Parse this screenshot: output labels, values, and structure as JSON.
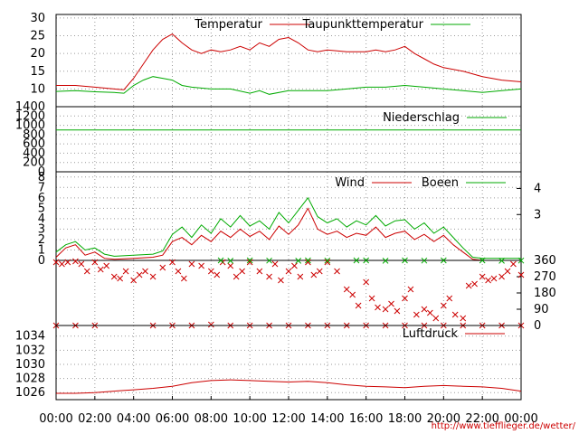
{
  "source_label": "http://www.tiefflieger.de/wetter/",
  "x_ticks": [
    "00:00",
    "02:00",
    "04:00",
    "06:00",
    "08:00",
    "10:00",
    "12:00",
    "14:00",
    "16:00",
    "18:00",
    "20:00",
    "22:00",
    "00:00"
  ],
  "colors": {
    "red": "#cc0000",
    "green": "#00aa00",
    "grid": "#9a9a9a"
  },
  "chart_data": [
    {
      "type": "line",
      "ylim": [
        5,
        31
      ],
      "y_ticks": [
        "30",
        "25",
        "20",
        "15",
        "10"
      ],
      "y_tick_values": [
        30,
        25,
        20,
        15,
        10
      ],
      "legend": "top",
      "series": [
        {
          "name": "Temperatur",
          "color": "#cc0000",
          "x": [
            0,
            1,
            2,
            3,
            3.5,
            4,
            4.5,
            5,
            5.5,
            6,
            6.5,
            7,
            7.5,
            8,
            8.5,
            9,
            9.5,
            10,
            10.5,
            11,
            11.5,
            12,
            12.5,
            13,
            13.5,
            14,
            15,
            16,
            16.5,
            17,
            17.5,
            18,
            18.5,
            19,
            19.5,
            20,
            21,
            22,
            23,
            24
          ],
          "y": [
            11,
            11,
            10.5,
            10,
            9.8,
            13,
            17,
            21,
            24,
            25.5,
            23,
            21,
            20,
            21,
            20.5,
            21,
            22,
            21,
            23,
            22,
            24,
            24.5,
            23,
            21,
            20.5,
            21,
            20.5,
            20.5,
            21,
            20.5,
            21,
            22,
            20,
            18.5,
            17,
            16,
            15,
            13.5,
            12.5,
            12
          ]
        },
        {
          "name": "Taupunkttemperatur",
          "color": "#00aa00",
          "x": [
            0,
            1,
            2,
            3,
            3.5,
            4,
            4.5,
            5,
            5.5,
            6,
            6.5,
            7,
            8,
            9,
            10,
            10.5,
            11,
            12,
            13,
            14,
            15,
            16,
            17,
            18,
            19,
            20,
            21,
            22,
            23,
            24
          ],
          "y": [
            9.3,
            9.5,
            9.2,
            9,
            8.8,
            11,
            12.5,
            13.5,
            13,
            12.5,
            11,
            10.5,
            10,
            10,
            8.8,
            9.5,
            8.5,
            9.5,
            9.5,
            9.5,
            10,
            10.5,
            10.5,
            11,
            10.5,
            10,
            9.5,
            9,
            9.5,
            10
          ]
        }
      ]
    },
    {
      "type": "line",
      "ylim": [
        0,
        1400
      ],
      "y_ticks": [
        "1400",
        "1200",
        "1000",
        "800",
        "600",
        "400",
        "200",
        "0"
      ],
      "y_tick_values": [
        1400,
        1200,
        1000,
        800,
        600,
        400,
        200,
        0
      ],
      "series": [
        {
          "name": "Niederschlag",
          "color": "#00aa00",
          "x": [
            0,
            24
          ],
          "y": [
            900,
            900
          ]
        }
      ]
    },
    {
      "type": "line",
      "ylim": [
        0,
        8.5
      ],
      "y_ticks": [
        "8",
        "7",
        "6",
        "5",
        "4",
        "3",
        "2",
        "1",
        "0"
      ],
      "y_tick_values": [
        8,
        7,
        6,
        5,
        4,
        3,
        2,
        1,
        0
      ],
      "y2_ticks": [
        "4",
        "3"
      ],
      "y2_tick_values": [
        6.9,
        4.4
      ],
      "series": [
        {
          "name": "Wind",
          "color": "#cc0000",
          "x": [
            0,
            0.5,
            1,
            1.5,
            2,
            2.5,
            3,
            4,
            5,
            5.5,
            6,
            6.5,
            7,
            7.5,
            8,
            8.5,
            9,
            9.5,
            10,
            10.5,
            11,
            11.5,
            12,
            12.5,
            13,
            13.5,
            14,
            14.5,
            15,
            15.5,
            16,
            16.5,
            17,
            17.5,
            18,
            18.5,
            19,
            19.5,
            20,
            20.5,
            21,
            21.5,
            22,
            23,
            24
          ],
          "y": [
            0.3,
            1.2,
            1.5,
            0.5,
            0.8,
            0.2,
            0.1,
            0.2,
            0.3,
            0.5,
            1.8,
            2.2,
            1.5,
            2.4,
            1.8,
            2.8,
            2.2,
            3,
            2.3,
            2.8,
            2,
            3.3,
            2.5,
            3.4,
            5,
            3,
            2.5,
            2.8,
            2.2,
            2.6,
            2.4,
            3.2,
            2.2,
            2.6,
            2.8,
            2,
            2.5,
            1.8,
            2.4,
            1.5,
            0.8,
            0.1,
            0,
            0,
            0
          ]
        },
        {
          "name": "Boeen",
          "color": "#00aa00",
          "x": [
            0,
            0.5,
            1,
            1.5,
            2,
            2.5,
            3,
            4,
            5,
            5.5,
            6,
            6.5,
            7,
            7.5,
            8,
            8.5,
            9,
            9.5,
            10,
            10.5,
            11,
            11.5,
            12,
            12.5,
            13,
            13.5,
            14,
            14.5,
            15,
            15.5,
            16,
            16.5,
            17,
            17.5,
            18,
            18.5,
            19,
            19.5,
            20,
            20.5,
            21,
            21.5,
            22,
            23,
            24
          ],
          "y": [
            0.8,
            1.5,
            1.8,
            1,
            1.2,
            0.6,
            0.4,
            0.5,
            0.6,
            0.9,
            2.5,
            3.2,
            2.2,
            3.4,
            2.6,
            4,
            3.2,
            4.3,
            3.3,
            3.8,
            3,
            4.6,
            3.6,
            4.8,
            6,
            4.2,
            3.6,
            4,
            3.2,
            3.8,
            3.4,
            4.3,
            3.3,
            3.8,
            3.9,
            3,
            3.6,
            2.6,
            3.2,
            2.2,
            1.2,
            0.3,
            0.2,
            0.2,
            0.2
          ]
        }
      ]
    },
    {
      "type": "scatter",
      "ylim": [
        0,
        360
      ],
      "y2_ticks": [
        "360",
        "270",
        "180",
        "90",
        "0"
      ],
      "y2_tick_values": [
        360,
        270,
        180,
        90,
        0
      ],
      "series": [
        {
          "name": "",
          "color": "#cc0000",
          "x": [
            0,
            0.3,
            0.6,
            1,
            1.3,
            1.6,
            2,
            2.3,
            2.6,
            3,
            3.3,
            3.6,
            4,
            4.3,
            4.6,
            5,
            5.5,
            6,
            6.3,
            6.6,
            7,
            7.5,
            8,
            8.3,
            8.6,
            9,
            9.3,
            9.6,
            10,
            10.5,
            11,
            11.3,
            11.6,
            12,
            12.3,
            12.6,
            13,
            13.3,
            13.6,
            14,
            14.5,
            15,
            15.3,
            15.6,
            16,
            16.3,
            16.6,
            17,
            17.3,
            17.6,
            18,
            18.3,
            18.6,
            19,
            19.3,
            19.6,
            20,
            20.3,
            20.6,
            21,
            21.3,
            21.6,
            22,
            22.3,
            22.6,
            23,
            23.3,
            23.6,
            24
          ],
          "y": [
            350,
            340,
            350,
            355,
            340,
            300,
            350,
            310,
            330,
            270,
            260,
            300,
            250,
            280,
            300,
            270,
            320,
            350,
            300,
            260,
            340,
            330,
            300,
            280,
            350,
            330,
            270,
            300,
            350,
            300,
            270,
            340,
            250,
            300,
            330,
            270,
            350,
            280,
            300,
            350,
            300,
            200,
            170,
            110,
            240,
            150,
            100,
            90,
            120,
            80,
            150,
            200,
            60,
            90,
            70,
            40,
            110,
            150,
            60,
            40,
            220,
            230,
            270,
            250,
            260,
            270,
            300,
            340,
            280
          ]
        },
        {
          "name": "",
          "color": "#cc0000",
          "x": [
            0,
            1,
            2,
            5,
            6,
            7,
            8,
            9,
            10,
            11,
            12,
            13,
            14,
            15,
            16,
            17,
            18,
            19,
            20,
            21,
            22,
            23,
            24
          ],
          "y": [
            0,
            0,
            0,
            0,
            0,
            0,
            5,
            0,
            0,
            0,
            0,
            0,
            0,
            0,
            0,
            0,
            0,
            0,
            0,
            0,
            0,
            0,
            0
          ]
        },
        {
          "name": "",
          "color": "#00aa00",
          "x": [
            8.5,
            9,
            10,
            11,
            12.5,
            13,
            14,
            15.5,
            16,
            17,
            18,
            19,
            20,
            22,
            23,
            24
          ],
          "y": [
            360,
            358,
            360,
            359,
            358,
            360,
            359,
            360,
            360,
            358,
            360,
            359,
            360,
            360,
            358,
            359
          ]
        }
      ]
    },
    {
      "type": "line",
      "ylim": [
        1025,
        1035.5
      ],
      "y_ticks": [
        "1034",
        "1032",
        "1030",
        "1028",
        "1026"
      ],
      "y_tick_values": [
        1034,
        1032,
        1030,
        1028,
        1026
      ],
      "series": [
        {
          "name": "Luftdruck",
          "color": "#cc0000",
          "x": [
            0,
            1,
            2,
            3,
            4,
            5,
            6,
            7,
            8,
            9,
            10,
            11,
            12,
            13,
            14,
            15,
            16,
            17,
            18,
            19,
            20,
            21,
            22,
            23,
            24
          ],
          "y": [
            1025.9,
            1025.9,
            1026,
            1026.2,
            1026.4,
            1026.6,
            1026.9,
            1027.4,
            1027.7,
            1027.8,
            1027.7,
            1027.6,
            1027.5,
            1027.6,
            1027.4,
            1027.1,
            1026.9,
            1026.8,
            1026.7,
            1026.9,
            1027,
            1026.9,
            1026.8,
            1026.6,
            1026.2
          ]
        }
      ]
    }
  ]
}
